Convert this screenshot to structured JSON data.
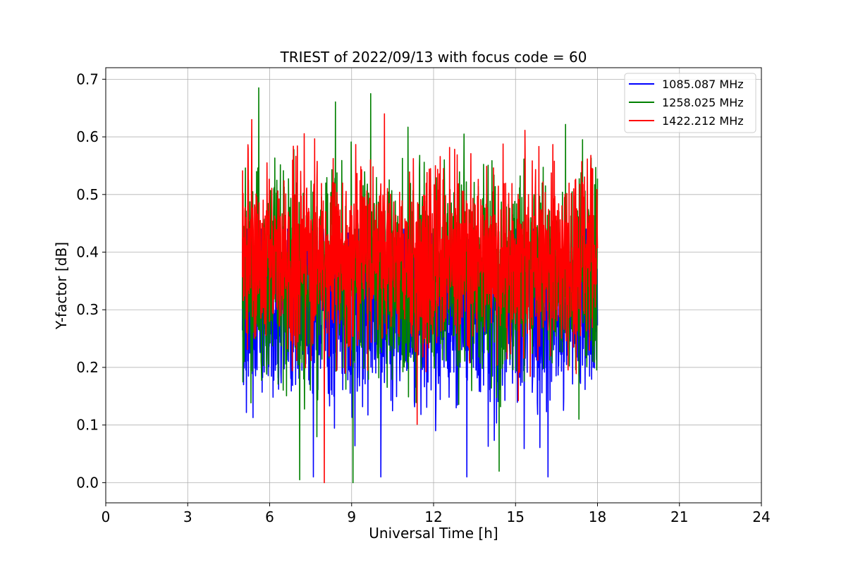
{
  "chart_data": {
    "type": "line",
    "title": "TRIEST of 2022/09/13 with focus code = 60",
    "xlabel": "Universal Time [h]",
    "ylabel": "Y-factor [dB]",
    "xlim": [
      0,
      24
    ],
    "ylim": [
      -0.035,
      0.72
    ],
    "xticks": [
      0,
      3,
      6,
      9,
      12,
      15,
      18,
      21,
      24
    ],
    "yticks": [
      0.0,
      0.1,
      0.2,
      0.3,
      0.4,
      0.5,
      0.6,
      0.7
    ],
    "ytick_labels": [
      "0.0",
      "0.1",
      "0.2",
      "0.3",
      "0.4",
      "0.5",
      "0.6",
      "0.7"
    ],
    "grid": true,
    "legend_position": "top-right",
    "data_range": {
      "x_start": 5.0,
      "x_end": 18.0
    },
    "series": [
      {
        "name": "1085.087 MHz",
        "color": "#0000ff",
        "center": 0.3,
        "noise": 0.085,
        "min": 0.0,
        "max": 0.45
      },
      {
        "name": "1258.025 MHz",
        "color": "#008000",
        "center": 0.36,
        "noise": 0.095,
        "min": 0.0,
        "max": 0.685
      },
      {
        "name": "1422.212 MHz",
        "color": "#ff0000",
        "center": 0.39,
        "noise": 0.085,
        "min": 0.0,
        "max": 0.64
      }
    ],
    "notable_points": [
      {
        "series": "1258.025 MHz",
        "x": 5.6,
        "y": 0.685
      },
      {
        "series": "1422.212 MHz",
        "x": 10.2,
        "y": 0.64
      },
      {
        "series": "1422.212 MHz",
        "x": 8.0,
        "y": 0.0
      },
      {
        "series": "1258.025 MHz",
        "x": 9.05,
        "y": 0.0
      },
      {
        "series": "1258.025 MHz",
        "x": 7.1,
        "y": 0.005
      },
      {
        "series": "1258.025 MHz",
        "x": 14.4,
        "y": 0.02
      },
      {
        "series": "1085.087 MHz",
        "x": 7.6,
        "y": 0.01
      },
      {
        "series": "1085.087 MHz",
        "x": 14.0,
        "y": 0.063
      }
    ]
  }
}
